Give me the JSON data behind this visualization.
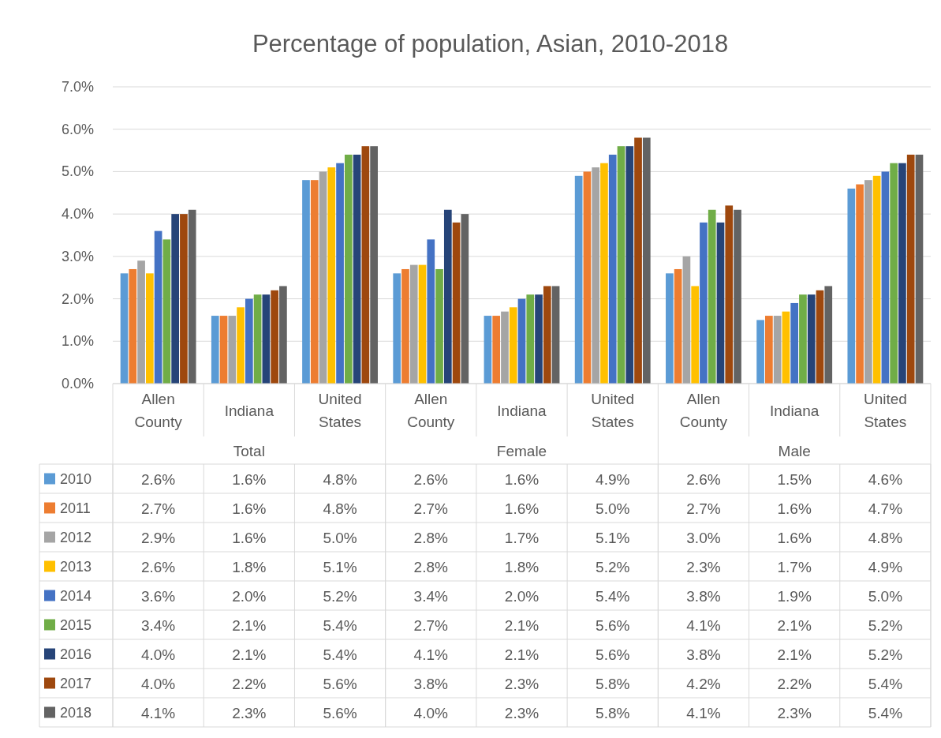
{
  "chart_data": {
    "type": "bar",
    "title": "Percentage of population, Asian, 2010-2018",
    "categories": [
      "Allen County",
      "Indiana",
      "United States",
      "Allen County",
      "Indiana",
      "United States",
      "Allen County",
      "Indiana",
      "United States"
    ],
    "annotations": [
      "Total",
      "Female",
      "Male"
    ],
    "ylim": [
      0,
      7
    ],
    "yticks": [
      {
        "value": 0,
        "label": "0.0%"
      },
      {
        "value": 1,
        "label": "1.0%"
      },
      {
        "value": 2,
        "label": "2.0%"
      },
      {
        "value": 3,
        "label": "3.0%"
      },
      {
        "value": 4,
        "label": "4.0%"
      },
      {
        "value": 5,
        "label": "5.0%"
      },
      {
        "value": 6,
        "label": "6.0%"
      },
      {
        "value": 7,
        "label": "7.0%"
      }
    ],
    "grid": "y",
    "legend": "bottom",
    "series": [
      {
        "name": "2010",
        "color": "#5b9bd5",
        "values": [
          2.6,
          1.6,
          4.8,
          2.6,
          1.6,
          4.9,
          2.6,
          1.5,
          4.6
        ],
        "value_labels": [
          "2.6%",
          "1.6%",
          "4.8%",
          "2.6%",
          "1.6%",
          "4.9%",
          "2.6%",
          "1.5%",
          "4.6%"
        ]
      },
      {
        "name": "2011",
        "color": "#ed7d31",
        "values": [
          2.7,
          1.6,
          4.8,
          2.7,
          1.6,
          5.0,
          2.7,
          1.6,
          4.7
        ],
        "value_labels": [
          "2.7%",
          "1.6%",
          "4.8%",
          "2.7%",
          "1.6%",
          "5.0%",
          "2.7%",
          "1.6%",
          "4.7%"
        ]
      },
      {
        "name": "2012",
        "color": "#a5a5a5",
        "values": [
          2.9,
          1.6,
          5.0,
          2.8,
          1.7,
          5.1,
          3.0,
          1.6,
          4.8
        ],
        "value_labels": [
          "2.9%",
          "1.6%",
          "5.0%",
          "2.8%",
          "1.7%",
          "5.1%",
          "3.0%",
          "1.6%",
          "4.8%"
        ]
      },
      {
        "name": "2013",
        "color": "#ffc000",
        "values": [
          2.6,
          1.8,
          5.1,
          2.8,
          1.8,
          5.2,
          2.3,
          1.7,
          4.9
        ],
        "value_labels": [
          "2.6%",
          "1.8%",
          "5.1%",
          "2.8%",
          "1.8%",
          "5.2%",
          "2.3%",
          "1.7%",
          "4.9%"
        ]
      },
      {
        "name": "2014",
        "color": "#4472c4",
        "values": [
          3.6,
          2.0,
          5.2,
          3.4,
          2.0,
          5.4,
          3.8,
          1.9,
          5.0
        ],
        "value_labels": [
          "3.6%",
          "2.0%",
          "5.2%",
          "3.4%",
          "2.0%",
          "5.4%",
          "3.8%",
          "1.9%",
          "5.0%"
        ]
      },
      {
        "name": "2015",
        "color": "#70ad47",
        "values": [
          3.4,
          2.1,
          5.4,
          2.7,
          2.1,
          5.6,
          4.1,
          2.1,
          5.2
        ],
        "value_labels": [
          "3.4%",
          "2.1%",
          "5.4%",
          "2.7%",
          "2.1%",
          "5.6%",
          "4.1%",
          "2.1%",
          "5.2%"
        ]
      },
      {
        "name": "2016",
        "color": "#264478",
        "values": [
          4.0,
          2.1,
          5.4,
          4.1,
          2.1,
          5.6,
          3.8,
          2.1,
          5.2
        ],
        "value_labels": [
          "4.0%",
          "2.1%",
          "5.4%",
          "4.1%",
          "2.1%",
          "5.6%",
          "3.8%",
          "2.1%",
          "5.2%"
        ]
      },
      {
        "name": "2017",
        "color": "#9e480e",
        "values": [
          4.0,
          2.2,
          5.6,
          3.8,
          2.3,
          5.8,
          4.2,
          2.2,
          5.4
        ],
        "value_labels": [
          "4.0%",
          "2.2%",
          "5.6%",
          "3.8%",
          "2.3%",
          "5.8%",
          "4.2%",
          "2.2%",
          "5.4%"
        ]
      },
      {
        "name": "2018",
        "color": "#636363",
        "values": [
          4.1,
          2.3,
          5.6,
          4.0,
          2.3,
          5.8,
          4.1,
          2.3,
          5.4
        ],
        "value_labels": [
          "4.1%",
          "2.3%",
          "5.6%",
          "4.0%",
          "2.3%",
          "5.8%",
          "4.1%",
          "2.3%",
          "5.4%"
        ]
      }
    ]
  }
}
